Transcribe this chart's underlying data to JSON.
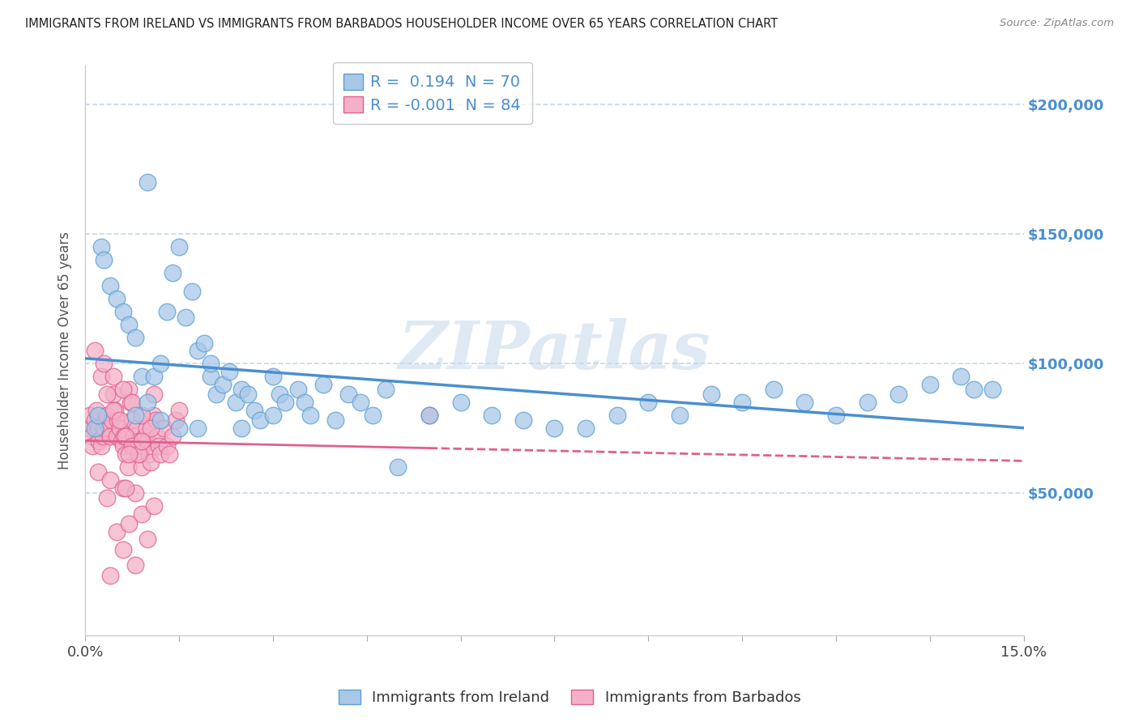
{
  "title": "IMMIGRANTS FROM IRELAND VS IMMIGRANTS FROM BARBADOS HOUSEHOLDER INCOME OVER 65 YEARS CORRELATION CHART",
  "source": "Source: ZipAtlas.com",
  "ylabel": "Householder Income Over 65 years",
  "xlim": [
    0.0,
    15.0
  ],
  "ylim": [
    -5000,
    215000
  ],
  "yticks": [
    50000,
    100000,
    150000,
    200000
  ],
  "ytick_labels": [
    "$50,000",
    "$100,000",
    "$150,000",
    "$200,000"
  ],
  "ireland_R": 0.194,
  "ireland_N": 70,
  "barbados_R": -0.001,
  "barbados_N": 84,
  "ireland_color": "#a8c8e8",
  "barbados_color": "#f4b0c8",
  "ireland_edge_color": "#5a9fd4",
  "barbados_edge_color": "#e06090",
  "ireland_line_color": "#4a8fd0",
  "barbados_line_color": "#e06090",
  "legend_ireland": "Immigrants from Ireland",
  "legend_barbados": "Immigrants from Barbados",
  "watermark": "ZIPatlas",
  "background_color": "#ffffff",
  "grid_color": "#c8d8e8",
  "ireland_scatter_x": [
    0.15,
    0.2,
    0.25,
    0.3,
    0.4,
    0.5,
    0.6,
    0.7,
    0.8,
    0.9,
    1.0,
    1.1,
    1.2,
    1.3,
    1.4,
    1.5,
    1.6,
    1.7,
    1.8,
    1.9,
    2.0,
    2.1,
    2.2,
    2.3,
    2.4,
    2.5,
    2.6,
    2.7,
    2.8,
    3.0,
    3.1,
    3.2,
    3.4,
    3.5,
    3.6,
    3.8,
    4.0,
    4.2,
    4.4,
    4.6,
    4.8,
    5.0,
    5.5,
    6.0,
    6.5,
    7.0,
    7.5,
    8.0,
    8.5,
    9.0,
    9.5,
    10.0,
    10.5,
    11.0,
    11.5,
    12.0,
    12.5,
    13.0,
    13.5,
    14.0,
    14.2,
    14.5,
    1.0,
    1.5,
    2.0,
    2.5,
    3.0,
    0.8,
    1.2,
    1.8
  ],
  "ireland_scatter_y": [
    75000,
    80000,
    145000,
    140000,
    130000,
    125000,
    120000,
    115000,
    110000,
    95000,
    85000,
    95000,
    100000,
    120000,
    135000,
    145000,
    118000,
    128000,
    105000,
    108000,
    95000,
    88000,
    92000,
    97000,
    85000,
    90000,
    88000,
    82000,
    78000,
    95000,
    88000,
    85000,
    90000,
    85000,
    80000,
    92000,
    78000,
    88000,
    85000,
    80000,
    90000,
    60000,
    80000,
    85000,
    80000,
    78000,
    75000,
    75000,
    80000,
    85000,
    80000,
    88000,
    85000,
    90000,
    85000,
    80000,
    85000,
    88000,
    92000,
    95000,
    90000,
    90000,
    170000,
    75000,
    100000,
    75000,
    80000,
    80000,
    78000,
    75000
  ],
  "barbados_scatter_x": [
    0.05,
    0.08,
    0.1,
    0.12,
    0.15,
    0.18,
    0.2,
    0.22,
    0.25,
    0.28,
    0.3,
    0.32,
    0.35,
    0.38,
    0.4,
    0.42,
    0.45,
    0.48,
    0.5,
    0.52,
    0.55,
    0.58,
    0.6,
    0.62,
    0.65,
    0.68,
    0.7,
    0.72,
    0.75,
    0.78,
    0.8,
    0.82,
    0.85,
    0.88,
    0.9,
    0.92,
    0.95,
    0.98,
    1.0,
    1.02,
    1.05,
    1.08,
    1.1,
    1.12,
    1.15,
    1.18,
    1.2,
    1.25,
    1.3,
    1.35,
    1.4,
    1.45,
    1.5,
    0.25,
    0.35,
    0.45,
    0.55,
    0.65,
    0.75,
    0.85,
    0.15,
    0.3,
    0.45,
    0.6,
    0.75,
    0.9,
    1.05,
    0.2,
    0.4,
    0.6,
    0.8,
    5.5,
    0.5,
    0.7,
    0.9,
    1.1,
    0.35,
    0.65,
    0.4,
    0.6,
    0.8,
    1.0,
    0.7,
    0.9
  ],
  "barbados_scatter_y": [
    75000,
    80000,
    72000,
    68000,
    78000,
    82000,
    75000,
    70000,
    68000,
    72000,
    75000,
    78000,
    80000,
    75000,
    72000,
    78000,
    88000,
    82000,
    72000,
    78000,
    75000,
    70000,
    68000,
    72000,
    65000,
    60000,
    90000,
    85000,
    78000,
    72000,
    68000,
    75000,
    70000,
    65000,
    60000,
    68000,
    72000,
    75000,
    70000,
    65000,
    62000,
    80000,
    88000,
    78000,
    72000,
    68000,
    65000,
    75000,
    68000,
    65000,
    72000,
    78000,
    82000,
    95000,
    88000,
    82000,
    78000,
    72000,
    68000,
    65000,
    105000,
    100000,
    95000,
    90000,
    85000,
    80000,
    75000,
    58000,
    55000,
    52000,
    50000,
    80000,
    35000,
    38000,
    42000,
    45000,
    48000,
    52000,
    18000,
    28000,
    22000,
    32000,
    65000,
    70000
  ]
}
